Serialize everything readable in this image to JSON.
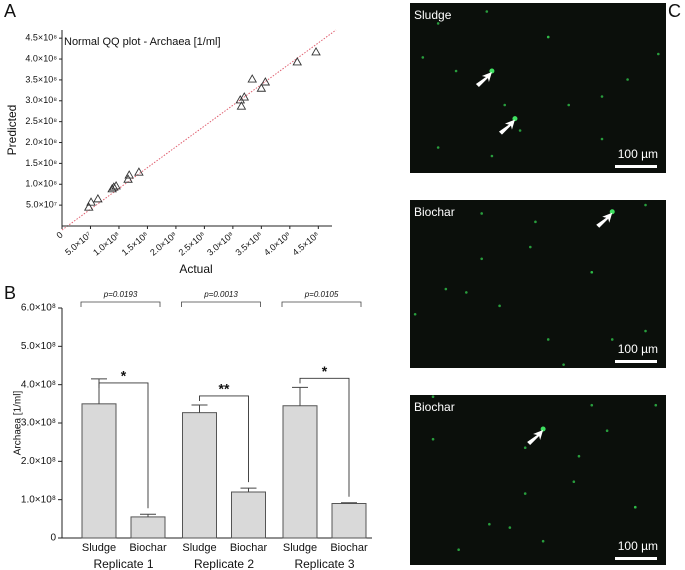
{
  "panel_labels": [
    "A",
    "B",
    "C"
  ],
  "chart_data": [
    {
      "type": "scatter",
      "title": "Normal QQ plot - Archaea [1/ml]",
      "xlabel": "Actual",
      "ylabel": "Predicted",
      "x": [
        47000000,
        51000000,
        63000000,
        88000000,
        91000000,
        95000000,
        116000000,
        118000000,
        135000000,
        313000000,
        315000000,
        320000000,
        334000000,
        350000000,
        357000000,
        413000000,
        446000000
      ],
      "values": [
        45000000,
        57000000,
        65000000,
        89000000,
        93000000,
        96000000,
        112000000,
        122000000,
        129000000,
        302000000,
        287000000,
        309000000,
        352000000,
        330000000,
        345000000,
        393000000,
        417000000
      ],
      "color": "#333333",
      "line_color": "#e06070",
      "xlim": [
        0,
        460000000
      ],
      "ylim": [
        0,
        460000000
      ],
      "xticks": [
        0,
        {
          "value": 50000000,
          "label": "5.0×10⁷"
        },
        {
          "value": 100000000,
          "label": "1.0×10⁸"
        },
        {
          "value": 150000000,
          "label": "1.5×10⁸"
        },
        {
          "value": 200000000,
          "label": "2.0×10⁸"
        },
        {
          "value": 250000000,
          "label": "2.5×10⁸"
        },
        {
          "value": 300000000,
          "label": "3.0×10⁸"
        },
        {
          "value": 350000000,
          "label": "3.5×10⁸"
        },
        {
          "value": 400000000,
          "label": "4.0×10⁸"
        },
        {
          "value": 450000000,
          "label": "4.5×10⁸"
        }
      ],
      "yticks": [
        {
          "value": 50000000,
          "label": "5.0×10⁷"
        },
        {
          "value": 100000000,
          "label": "1.0×10⁸"
        },
        {
          "value": 150000000,
          "label": "1.5×10⁸"
        },
        {
          "value": 200000000,
          "label": "2.0×10⁸"
        },
        {
          "value": 250000000,
          "label": "2.5×10⁸"
        },
        {
          "value": 300000000,
          "label": "3.0×10⁸"
        },
        {
          "value": 350000000,
          "label": "3.5×10⁸"
        },
        {
          "value": 400000000,
          "label": "4.0×10⁸"
        },
        {
          "value": 450000000,
          "label": "4.5×10⁸"
        }
      ]
    },
    {
      "type": "bar",
      "ylabel": "Archaea [1/ml]",
      "categories": [
        "Sludge",
        "Biochar",
        "Sludge",
        "Biochar",
        "Sludge",
        "Biochar"
      ],
      "groups": [
        "Replicate 1",
        "Replicate 2",
        "Replicate 3"
      ],
      "values": [
        350000000,
        55000000,
        327000000,
        120000000,
        345000000,
        90000000
      ],
      "errors": [
        65000000,
        7000000,
        20000000,
        10000000,
        48000000,
        2000000
      ],
      "p_values": [
        "p=0.0193",
        "p=0.0013",
        "p=0.0105"
      ],
      "significance": [
        "*",
        "**",
        "*"
      ],
      "color": "#d9d9d9",
      "ylim": [
        0,
        600000000
      ],
      "yticks": [
        0,
        {
          "value": 100000000,
          "label": "1.0×10⁸"
        },
        {
          "value": 200000000,
          "label": "2.0×10⁸"
        },
        {
          "value": 300000000,
          "label": "3.0×10⁸"
        },
        {
          "value": 400000000,
          "label": "4.0×10⁸"
        },
        {
          "value": 500000000,
          "label": "5.0×10⁸"
        },
        {
          "value": 600000000,
          "label": "6.0×10⁸"
        }
      ]
    }
  ],
  "micrographs": [
    {
      "label": "Sludge",
      "scale_bar": "100 µm"
    },
    {
      "label": "Biochar",
      "scale_bar": "100 µm"
    },
    {
      "label": "Biochar",
      "scale_bar": "100 µm"
    }
  ]
}
